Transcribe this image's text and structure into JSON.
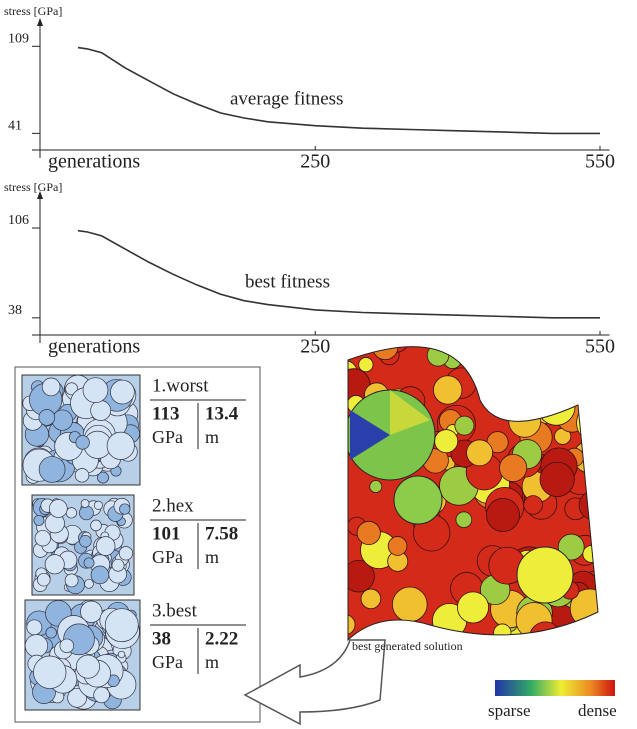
{
  "chart_data": [
    {
      "type": "line",
      "y_label": "stress [GPa]",
      "x_label": "generations",
      "annotation": "average fitness",
      "x": [
        0,
        10,
        25,
        50,
        75,
        100,
        125,
        150,
        175,
        200,
        250,
        300,
        350,
        400,
        450,
        500,
        550
      ],
      "series": [
        {
          "name": "average fitness",
          "color": "#333333",
          "values": [
            108,
            107,
            104,
            92,
            82,
            72,
            64,
            57,
            53,
            50,
            47,
            45,
            44,
            43,
            42,
            41,
            41
          ]
        }
      ],
      "xlim": [
        -40,
        560
      ],
      "ylim": [
        28,
        128
      ],
      "xticks": [
        250,
        550
      ],
      "yticks": [
        41,
        109
      ]
    },
    {
      "type": "line",
      "y_label": "stress [GPa]",
      "x_label": "generations",
      "annotation": "best fitness",
      "x": [
        0,
        10,
        25,
        50,
        75,
        100,
        125,
        150,
        175,
        200,
        250,
        300,
        350,
        400,
        450,
        500,
        550
      ],
      "series": [
        {
          "name": "best fitness",
          "color": "#333333",
          "values": [
            104,
            103,
            100,
            90,
            80,
            71,
            63,
            56,
            51,
            48,
            44,
            42,
            41,
            40,
            39,
            38,
            38
          ]
        }
      ],
      "xlim": [
        -40,
        560
      ],
      "ylim": [
        25,
        131
      ],
      "xticks": [
        250,
        550
      ],
      "yticks": [
        38,
        106
      ]
    }
  ],
  "panel": {
    "items": [
      {
        "label": "1.worst",
        "stress": "113",
        "length": "13.4",
        "stress_unit": "GPa",
        "length_unit": "m"
      },
      {
        "label": "2.hex",
        "stress": "101",
        "length": "7.58",
        "stress_unit": "GPa",
        "length_unit": "m"
      },
      {
        "label": "3.best",
        "stress": "38",
        "length": "2.22",
        "stress_unit": "GPa",
        "length_unit": "m"
      }
    ]
  },
  "solution_caption": "best generated solution",
  "colorbar": {
    "low": "sparse",
    "high": "dense"
  }
}
